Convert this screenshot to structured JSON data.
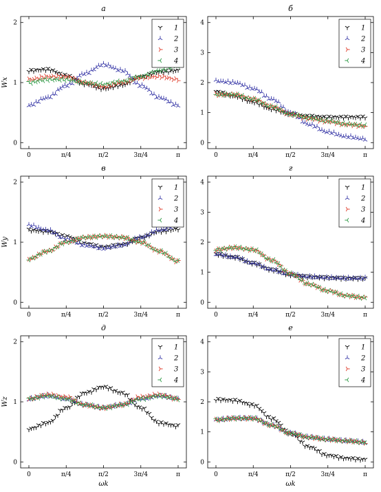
{
  "colors": {
    "1": "#000000",
    "2": "#3a3aa8",
    "3": "#e0402f",
    "4": "#2e9a45"
  },
  "xticks": [
    {
      "v": 0,
      "label": "0"
    },
    {
      "v": 0.7854,
      "label": "π/4"
    },
    {
      "v": 1.5708,
      "label": "π/2"
    },
    {
      "v": 2.3562,
      "label": "3π/4"
    },
    {
      "v": 3.1416,
      "label": "π"
    }
  ],
  "xlabel": "ωk",
  "legend": [
    "1",
    "2",
    "3",
    "4"
  ],
  "chart_data": [
    {
      "type": "scatter",
      "title": "а",
      "ylabel": "Wx",
      "xlim": [
        0,
        3.1416
      ],
      "ylim": [
        -0.1,
        2.1
      ],
      "yticks": [
        0,
        1,
        2
      ],
      "legend": "top-right",
      "series": [
        {
          "name": "1",
          "x": [
            0,
            0.3927,
            0.7854,
            1.1781,
            1.5708,
            1.9635,
            2.3562,
            2.7489,
            3.1416
          ],
          "y": [
            1.2,
            1.22,
            1.12,
            0.98,
            0.9,
            0.96,
            1.1,
            1.18,
            1.2
          ]
        },
        {
          "name": "2",
          "x": [
            0,
            0.3927,
            0.7854,
            1.1781,
            1.5708,
            1.9635,
            2.3562,
            2.7489,
            3.1416
          ],
          "y": [
            0.62,
            0.75,
            0.95,
            1.15,
            1.3,
            1.2,
            0.95,
            0.75,
            0.62
          ]
        },
        {
          "name": "3",
          "x": [
            0,
            0.3927,
            0.7854,
            1.1781,
            1.5708,
            1.9635,
            2.3562,
            2.7489,
            3.1416
          ],
          "y": [
            1.05,
            1.1,
            1.1,
            1.0,
            0.93,
            1.0,
            1.08,
            1.1,
            1.05
          ]
        },
        {
          "name": "4",
          "x": [
            0,
            0.3927,
            0.7854,
            1.1781,
            1.5708,
            1.9635,
            2.3562,
            2.7489,
            3.1416
          ],
          "y": [
            1.0,
            1.05,
            1.05,
            1.0,
            0.97,
            1.02,
            1.1,
            1.2,
            1.28
          ]
        }
      ]
    },
    {
      "type": "scatter",
      "title": "б",
      "ylabel": "",
      "xlim": [
        0,
        3.1416
      ],
      "ylim": [
        -0.2,
        4.2
      ],
      "yticks": [
        0,
        1,
        2,
        3,
        4
      ],
      "legend": "top-right",
      "series": [
        {
          "name": "1",
          "x": [
            0,
            0.3927,
            0.7854,
            1.1781,
            1.5708,
            1.9635,
            2.3562,
            2.7489,
            3.1416
          ],
          "y": [
            1.7,
            1.55,
            1.35,
            1.12,
            0.95,
            0.88,
            0.85,
            0.85,
            0.85
          ]
        },
        {
          "name": "2",
          "x": [
            0,
            0.3927,
            0.7854,
            1.1781,
            1.5708,
            1.9635,
            2.3562,
            2.7489,
            3.1416
          ],
          "y": [
            2.05,
            2.0,
            1.8,
            1.45,
            1.0,
            0.6,
            0.35,
            0.2,
            0.12
          ]
        },
        {
          "name": "3",
          "x": [
            0,
            0.3927,
            0.7854,
            1.1781,
            1.5708,
            1.9635,
            2.3562,
            2.7489,
            3.1416
          ],
          "y": [
            1.6,
            1.6,
            1.45,
            1.2,
            0.95,
            0.8,
            0.7,
            0.6,
            0.55
          ]
        },
        {
          "name": "4",
          "x": [
            0,
            0.3927,
            0.7854,
            1.1781,
            1.5708,
            1.9635,
            2.3562,
            2.7489,
            3.1416
          ],
          "y": [
            1.6,
            1.6,
            1.45,
            1.2,
            0.95,
            0.82,
            0.72,
            0.62,
            0.57
          ]
        }
      ]
    },
    {
      "type": "scatter",
      "title": "в",
      "ylabel": "Wy",
      "xlim": [
        0,
        3.1416
      ],
      "ylim": [
        -0.1,
        2.1
      ],
      "yticks": [
        0,
        1,
        2
      ],
      "legend": "top-right",
      "series": [
        {
          "name": "1",
          "x": [
            0,
            0.3927,
            0.7854,
            1.1781,
            1.5708,
            1.9635,
            2.3562,
            2.7489,
            3.1416
          ],
          "y": [
            1.2,
            1.18,
            1.1,
            0.98,
            0.92,
            0.96,
            1.08,
            1.18,
            1.22
          ]
        },
        {
          "name": "2",
          "x": [
            0,
            0.3927,
            0.7854,
            1.1781,
            1.5708,
            1.9635,
            2.3562,
            2.7489,
            3.1416
          ],
          "y": [
            1.28,
            1.2,
            1.05,
            0.95,
            0.9,
            0.95,
            1.08,
            1.2,
            1.28
          ]
        },
        {
          "name": "3",
          "x": [
            0,
            0.3927,
            0.7854,
            1.1781,
            1.5708,
            1.9635,
            2.3562,
            2.7489,
            3.1416
          ],
          "y": [
            0.72,
            0.85,
            1.0,
            1.08,
            1.1,
            1.08,
            1.0,
            0.85,
            0.68
          ]
        },
        {
          "name": "4",
          "x": [
            0,
            0.3927,
            0.7854,
            1.1781,
            1.5708,
            1.9635,
            2.3562,
            2.7489,
            3.1416
          ],
          "y": [
            0.72,
            0.85,
            1.0,
            1.08,
            1.1,
            1.08,
            1.0,
            0.85,
            0.68
          ]
        }
      ]
    },
    {
      "type": "scatter",
      "title": "г",
      "ylabel": "",
      "xlim": [
        0,
        3.1416
      ],
      "ylim": [
        -0.2,
        4.2
      ],
      "yticks": [
        0,
        1,
        2,
        3,
        4
      ],
      "legend": "top-right",
      "series": [
        {
          "name": "1",
          "x": [
            0,
            0.3927,
            0.7854,
            1.1781,
            1.5708,
            1.9635,
            2.3562,
            2.7489,
            3.1416
          ],
          "y": [
            1.6,
            1.5,
            1.3,
            1.08,
            0.92,
            0.85,
            0.82,
            0.8,
            0.8
          ]
        },
        {
          "name": "2",
          "x": [
            0,
            0.3927,
            0.7854,
            1.1781,
            1.5708,
            1.9635,
            2.3562,
            2.7489,
            3.1416
          ],
          "y": [
            1.6,
            1.5,
            1.3,
            1.08,
            0.92,
            0.85,
            0.82,
            0.8,
            0.8
          ]
        },
        {
          "name": "3",
          "x": [
            0,
            0.3927,
            0.7854,
            1.1781,
            1.5708,
            1.9635,
            2.3562,
            2.7489,
            3.1416
          ],
          "y": [
            1.75,
            1.82,
            1.75,
            1.4,
            0.95,
            0.6,
            0.38,
            0.22,
            0.15
          ]
        },
        {
          "name": "4",
          "x": [
            0,
            0.3927,
            0.7854,
            1.1781,
            1.5708,
            1.9635,
            2.3562,
            2.7489,
            3.1416
          ],
          "y": [
            1.75,
            1.82,
            1.75,
            1.4,
            0.95,
            0.6,
            0.38,
            0.22,
            0.15
          ]
        }
      ]
    },
    {
      "type": "scatter",
      "title": "д",
      "ylabel": "Wz",
      "xlim": [
        0,
        3.1416
      ],
      "ylim": [
        -0.1,
        2.1
      ],
      "yticks": [
        0,
        1,
        2
      ],
      "legend": "top-right",
      "series": [
        {
          "name": "1",
          "x": [
            0,
            0.3927,
            0.7854,
            1.1781,
            1.5708,
            1.9635,
            2.3562,
            2.7489,
            3.1416
          ],
          "y": [
            0.55,
            0.65,
            0.9,
            1.15,
            1.25,
            1.15,
            0.9,
            0.65,
            0.6
          ]
        },
        {
          "name": "2",
          "x": [
            0,
            0.3927,
            0.7854,
            1.1781,
            1.5708,
            1.9635,
            2.3562,
            2.7489,
            3.1416
          ],
          "y": [
            1.05,
            1.1,
            1.05,
            0.95,
            0.9,
            0.95,
            1.05,
            1.1,
            1.05
          ]
        },
        {
          "name": "3",
          "x": [
            0,
            0.3927,
            0.7854,
            1.1781,
            1.5708,
            1.9635,
            2.3562,
            2.7489,
            3.1416
          ],
          "y": [
            1.05,
            1.12,
            1.08,
            0.95,
            0.9,
            0.95,
            1.08,
            1.12,
            1.05
          ]
        },
        {
          "name": "4",
          "x": [
            0,
            0.3927,
            0.7854,
            1.1781,
            1.5708,
            1.9635,
            2.3562,
            2.7489,
            3.1416
          ],
          "y": [
            1.05,
            1.1,
            1.05,
            0.95,
            0.9,
            0.95,
            1.05,
            1.1,
            1.05
          ]
        }
      ]
    },
    {
      "type": "scatter",
      "title": "е",
      "ylabel": "",
      "xlim": [
        0,
        3.1416
      ],
      "ylim": [
        -0.2,
        4.2
      ],
      "yticks": [
        0,
        1,
        2,
        3,
        4
      ],
      "legend": "top-right",
      "series": [
        {
          "name": "1",
          "x": [
            0,
            0.3927,
            0.7854,
            1.1781,
            1.5708,
            1.9635,
            2.3562,
            2.7489,
            3.1416
          ],
          "y": [
            2.08,
            2.05,
            1.9,
            1.45,
            0.95,
            0.5,
            0.22,
            0.12,
            0.08
          ]
        },
        {
          "name": "2",
          "x": [
            0,
            0.3927,
            0.7854,
            1.1781,
            1.5708,
            1.9635,
            2.3562,
            2.7489,
            3.1416
          ],
          "y": [
            1.4,
            1.45,
            1.45,
            1.22,
            0.95,
            0.82,
            0.75,
            0.7,
            0.65
          ]
        },
        {
          "name": "3",
          "x": [
            0,
            0.3927,
            0.7854,
            1.1781,
            1.5708,
            1.9635,
            2.3562,
            2.7489,
            3.1416
          ],
          "y": [
            1.4,
            1.45,
            1.45,
            1.22,
            0.95,
            0.82,
            0.75,
            0.7,
            0.65
          ]
        },
        {
          "name": "4",
          "x": [
            0,
            0.3927,
            0.7854,
            1.1781,
            1.5708,
            1.9635,
            2.3562,
            2.7489,
            3.1416
          ],
          "y": [
            1.4,
            1.45,
            1.45,
            1.22,
            0.95,
            0.82,
            0.75,
            0.7,
            0.65
          ]
        }
      ]
    }
  ]
}
